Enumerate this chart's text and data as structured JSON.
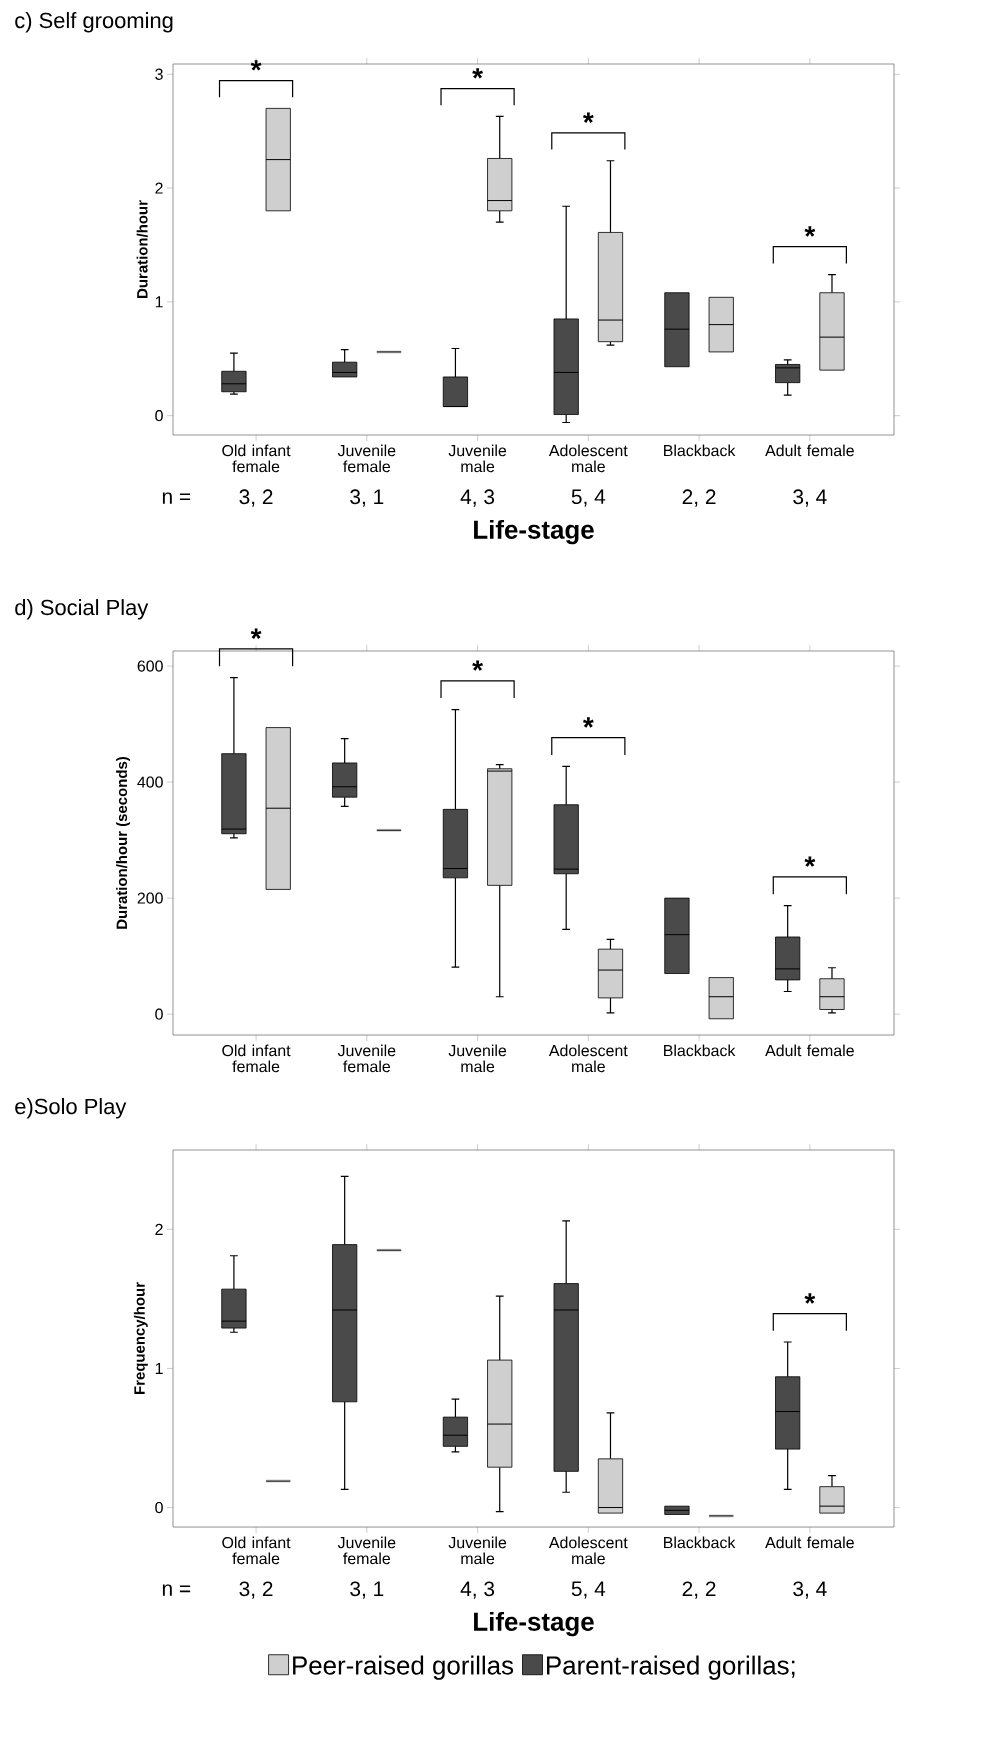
{
  "chart_data": [
    {
      "type": "box",
      "title": "c) Self grooming",
      "ylabel": "Duration/hour",
      "xlabel": "Life-stage",
      "categories": [
        "Old infant female",
        "Juvenile female",
        "Juvenile male",
        "Adolescent male",
        "Blackback",
        "Adult female"
      ],
      "ylim": [
        -0.17,
        3.09
      ],
      "yticks": [
        0,
        1,
        2,
        3
      ],
      "series": [
        {
          "color": "#4a4a4a",
          "boxes": [
            {
              "low": 0.19,
              "q1": 0.21,
              "median": 0.28,
              "q3": 0.39,
              "high": 0.55
            },
            {
              "low": 0.34,
              "q1": 0.34,
              "median": 0.38,
              "q3": 0.47,
              "high": 0.58
            },
            {
              "low": 0.08,
              "q1": 0.08,
              "median": 0.08,
              "q3": 0.34,
              "high": 0.59
            },
            {
              "low": -0.06,
              "q1": 0.01,
              "median": 0.38,
              "q3": 0.85,
              "high": 1.84
            },
            {
              "low": 0.43,
              "q1": 0.43,
              "median": 0.76,
              "q3": 1.08,
              "high": 1.08
            },
            {
              "low": 0.18,
              "q1": 0.29,
              "median": 0.42,
              "q3": 0.45,
              "high": 0.49
            }
          ]
        },
        {
          "color": "#cfcfcf",
          "boxes": [
            {
              "low": 1.8,
              "q1": 1.8,
              "median": 2.25,
              "q3": 2.7,
              "high": 2.7
            },
            {
              "low": 0.56,
              "q1": 0.56,
              "median": 0.56,
              "q3": 0.56,
              "high": 0.56
            },
            {
              "low": 1.7,
              "q1": 1.8,
              "median": 1.89,
              "q3": 2.26,
              "high": 2.63
            },
            {
              "low": 0.62,
              "q1": 0.65,
              "median": 0.84,
              "q3": 1.61,
              "high": 2.24
            },
            {
              "low": 0.56,
              "q1": 0.56,
              "median": 0.8,
              "q3": 1.04,
              "high": 1.04
            },
            {
              "low": 0.4,
              "q1": 0.4,
              "median": 0.69,
              "q3": 1.08,
              "high": 1.24
            }
          ]
        }
      ],
      "annotations": [
        "*",
        "*",
        "*",
        "*",
        "n =",
        "3, 2",
        "3, 1",
        "4, 3",
        "5, 4",
        "2, 2",
        "3, 4"
      ]
    },
    {
      "type": "box",
      "title": "d) Social Play",
      "ylabel": "Duration/hour (seconds)",
      "categories": [
        "Old infant female",
        "Juvenile female",
        "Juvenile male",
        "Adolescent male",
        "Blackback",
        "Adult female"
      ],
      "ylim": [
        -36,
        626
      ],
      "yticks": [
        0,
        200,
        400,
        600
      ],
      "series": [
        {
          "color": "#4a4a4a",
          "boxes": [
            {
              "low": 304,
              "q1": 311,
              "median": 319,
              "q3": 449,
              "high": 580
            },
            {
              "low": 358,
              "q1": 374,
              "median": 392,
              "q3": 433,
              "high": 475
            },
            {
              "low": 81,
              "q1": 235,
              "median": 251,
              "q3": 353,
              "high": 525
            },
            {
              "low": 146,
              "q1": 242,
              "median": 250,
              "q3": 361,
              "high": 427
            },
            {
              "low": 70,
              "q1": 70,
              "median": 137,
              "q3": 200,
              "high": 200
            },
            {
              "low": 39,
              "q1": 59,
              "median": 78,
              "q3": 133,
              "high": 187
            }
          ]
        },
        {
          "color": "#cfcfcf",
          "boxes": [
            {
              "low": 215,
              "q1": 215,
              "median": 355,
              "q3": 494,
              "high": 494
            },
            {
              "low": 317,
              "q1": 317,
              "median": 317,
              "q3": 317,
              "high": 317
            },
            {
              "low": 30,
              "q1": 222,
              "median": 419,
              "q3": 423,
              "high": 430
            },
            {
              "low": 2,
              "q1": 28,
              "median": 76,
              "q3": 112,
              "high": 129
            },
            {
              "low": -8,
              "q1": -8,
              "median": 30,
              "q3": 63,
              "high": 63
            },
            {
              "low": 2,
              "q1": 8,
              "median": 30,
              "q3": 61,
              "high": 80
            }
          ]
        }
      ],
      "annotations": [
        "*",
        "*",
        "*",
        "*"
      ]
    },
    {
      "type": "box",
      "title": "e)Solo Play",
      "ylabel": "Frequency/hour",
      "xlabel": "Life-stage",
      "categories": [
        "Old infant female",
        "Juvenile female",
        "Juvenile male",
        "Adolescent male",
        "Blackback",
        "Adult female"
      ],
      "ylim": [
        -0.14,
        2.57
      ],
      "yticks": [
        0,
        1,
        2
      ],
      "legend": "bottom",
      "series": [
        {
          "name": "Parent-raised gorillas;",
          "color": "#4a4a4a",
          "boxes": [
            {
              "low": 1.26,
              "q1": 1.29,
              "median": 1.34,
              "q3": 1.57,
              "high": 1.81
            },
            {
              "low": 0.13,
              "q1": 0.76,
              "median": 1.42,
              "q3": 1.89,
              "high": 2.38
            },
            {
              "low": 0.4,
              "q1": 0.44,
              "median": 0.52,
              "q3": 0.65,
              "high": 0.78
            },
            {
              "low": 0.11,
              "q1": 0.26,
              "median": 1.42,
              "q3": 1.61,
              "high": 2.06
            },
            {
              "low": -0.05,
              "q1": -0.05,
              "median": -0.02,
              "q3": 0.01,
              "high": 0.01
            },
            {
              "low": 0.13,
              "q1": 0.42,
              "median": 0.69,
              "q3": 0.94,
              "high": 1.19
            }
          ]
        },
        {
          "name": "Peer-raised gorillas",
          "color": "#cfcfcf",
          "boxes": [
            {
              "low": 0.19,
              "q1": 0.19,
              "median": 0.19,
              "q3": 0.19,
              "high": 0.19
            },
            {
              "low": 1.85,
              "q1": 1.85,
              "median": 1.85,
              "q3": 1.85,
              "high": 1.85
            },
            {
              "low": -0.03,
              "q1": 0.29,
              "median": 0.6,
              "q3": 1.06,
              "high": 1.52
            },
            {
              "low": -0.04,
              "q1": -0.04,
              "median": 0.0,
              "q3": 0.35,
              "high": 0.68
            },
            {
              "low": -0.06,
              "q1": -0.06,
              "median": -0.06,
              "q3": -0.06,
              "high": -0.06
            },
            {
              "low": -0.04,
              "q1": -0.04,
              "median": 0.01,
              "q3": 0.15,
              "high": 0.23
            }
          ]
        }
      ],
      "annotations": [
        "*",
        "n =",
        "3, 2",
        "3, 1",
        "4, 3",
        "5, 4",
        "2, 2",
        "3, 4"
      ]
    }
  ]
}
